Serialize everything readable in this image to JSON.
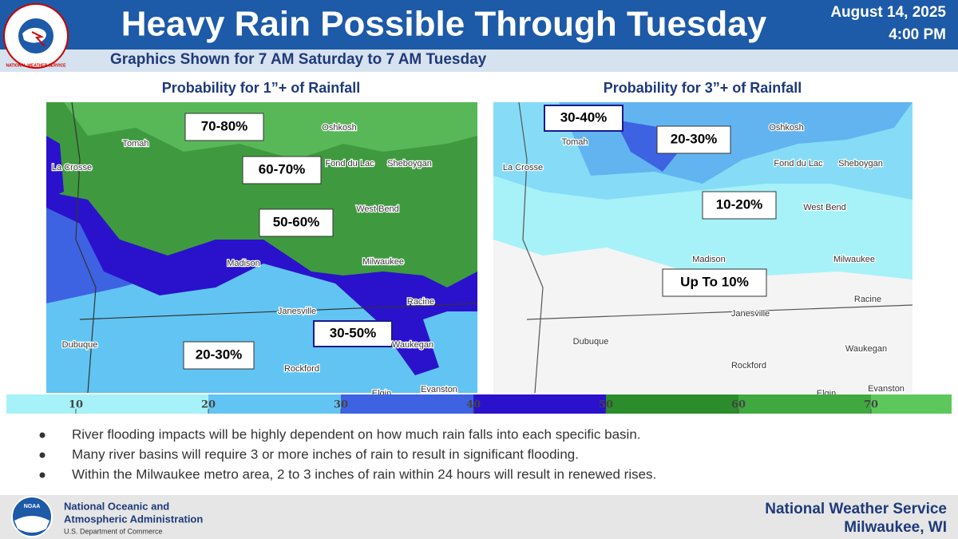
{
  "header": {
    "logo_text": "NATIONAL WEATHER SERVICE",
    "title": "Heavy Rain Possible Through Tuesday",
    "date": "August 14, 2025",
    "time": "4:00 PM",
    "subtitle": "Graphics Shown for 7 AM Saturday to 7 AM Tuesday"
  },
  "panels": [
    {
      "title": "Probability for 1”+ of Rainfall",
      "labels": [
        "70-80%",
        "60-70%",
        "50-60%",
        "30-50%",
        "20-30%"
      ],
      "cities": [
        "Tomah",
        "Oshkosh",
        "Fond du Lac",
        "Sheboygan",
        "La Crosse",
        "West Bend",
        "Madison",
        "Milwaukee",
        "Janesville",
        "Racine",
        "Dubuque",
        "Rockford",
        "Waukegan",
        "Evanston",
        "Elgin"
      ]
    },
    {
      "title": "Probability for 3”+ of Rainfall",
      "labels": [
        "30-40%",
        "20-30%",
        "10-20%",
        "Up To 10%"
      ],
      "cities": [
        "Tomah",
        "Oshkosh",
        "Fond du Lac",
        "Sheboygan",
        "La Crosse",
        "West Bend",
        "Madison",
        "Milwaukee",
        "Janesville",
        "Racine",
        "Dubuque",
        "Rockford",
        "Waukegan",
        "Evanston",
        "Elgin"
      ]
    }
  ],
  "colorbar": {
    "ticks": [
      10,
      20,
      30,
      40,
      50,
      60,
      70
    ],
    "colors": [
      "#a6f2f8",
      "#62c4f2",
      "#3d63e3",
      "#2a12cc",
      "#2a8c2a",
      "#3fa83f",
      "#5cc85c"
    ]
  },
  "bullets": [
    "River flooding impacts will be highly dependent on how much rain falls into each specific basin.",
    "Many river basins will require 3 or more inches of rain to result in significant flooding.",
    "Within the Milwaukee metro area, 2 to 3 inches of rain within 24 hours will result in renewed rises."
  ],
  "footer": {
    "noaa_logo": "NOAA",
    "org_line1": "National Oceanic and",
    "org_line2": "Atmospheric Administration",
    "dept": "U.S. Department of Commerce",
    "office": "National Weather Service",
    "location": "Milwaukee, WI"
  }
}
